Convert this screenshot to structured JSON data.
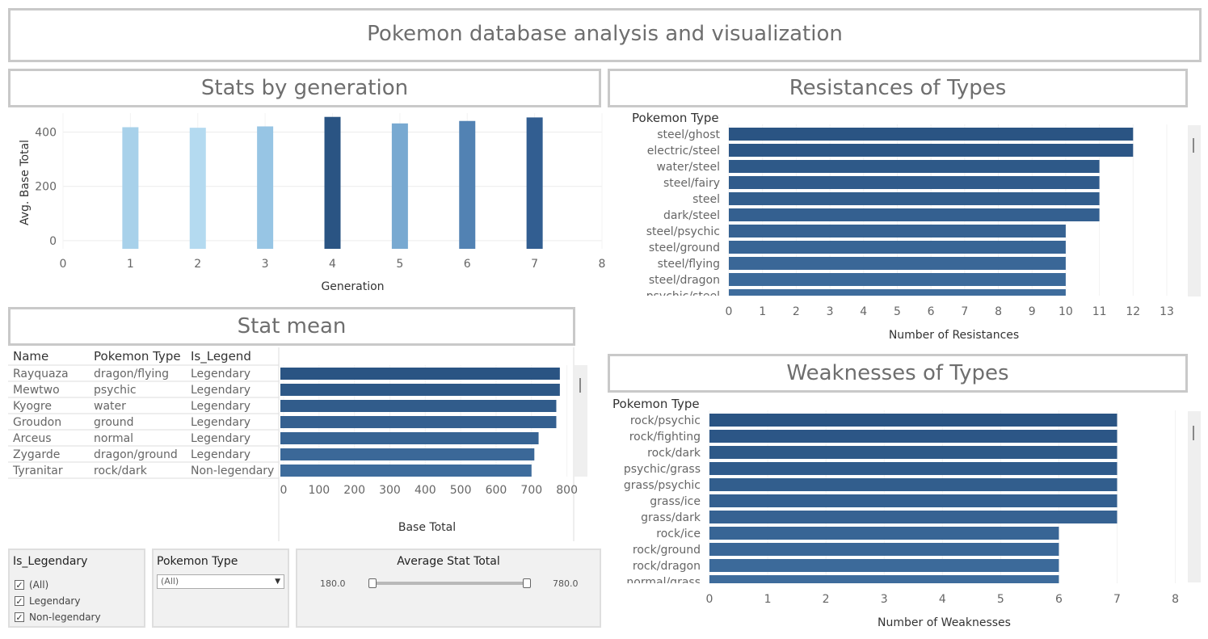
{
  "dashboard": {
    "title": "Pokemon database analysis and visualization"
  },
  "panels": {
    "generation_title": "Stats by generation",
    "resist_title": "Resistances of Types",
    "statmean_title": "Stat mean",
    "weak_title": "Weaknesses of Types"
  },
  "chart_data": [
    {
      "type": "bar",
      "title": "Stats by generation",
      "xlabel": "Generation",
      "ylabel": "Avg. Base Total",
      "x": [
        1,
        2,
        3,
        4,
        5,
        6,
        7
      ],
      "values": [
        418,
        416,
        421,
        456,
        432,
        441,
        454
      ],
      "xlim": [
        0,
        8
      ],
      "ylim": [
        -30,
        470
      ],
      "xticks": [
        0,
        1,
        2,
        3,
        4,
        5,
        6,
        7,
        8
      ],
      "yticks": [
        0,
        200,
        400
      ],
      "colors": [
        "#a8d1ea",
        "#b4daf0",
        "#97c5e4",
        "#2a5483",
        "#78a9d1",
        "#5282b3",
        "#325e91"
      ],
      "grid": true
    },
    {
      "type": "bar",
      "orientation": "horizontal",
      "title": "Resistances of Types",
      "category_header": "Pokemon Type",
      "xlabel": "Number of Resistances",
      "categories": [
        "steel/ghost",
        "electric/steel",
        "water/steel",
        "steel/fairy",
        "steel",
        "dark/steel",
        "steel/psychic",
        "steel/ground",
        "steel/flying",
        "steel/dragon",
        "psychic/steel"
      ],
      "values": [
        12,
        12,
        11,
        11,
        11,
        11,
        10,
        10,
        10,
        10,
        10
      ],
      "xticks": [
        0,
        1,
        2,
        3,
        4,
        5,
        6,
        7,
        8,
        9,
        10,
        11,
        12,
        13
      ],
      "xlim": [
        0,
        13.6
      ]
    },
    {
      "type": "table",
      "title": "Stat mean",
      "columns": [
        "Name",
        "Pokemon Type",
        "Is_Legend"
      ],
      "rows": [
        [
          "Rayquaza",
          "dragon/flying",
          "Legendary"
        ],
        [
          "Mewtwo",
          "psychic",
          "Legendary"
        ],
        [
          "Kyogre",
          "water",
          "Legendary"
        ],
        [
          "Groudon",
          "ground",
          "Legendary"
        ],
        [
          "Arceus",
          "normal",
          "Legendary"
        ],
        [
          "Zygarde",
          "dragon/ground",
          "Legendary"
        ],
        [
          "Tyranitar",
          "rock/dark",
          "Non-legendary"
        ]
      ],
      "values": [
        780,
        780,
        770,
        770,
        720,
        708,
        700
      ],
      "xlabel": "Base Total",
      "xticks": [
        0,
        100,
        200,
        300,
        400,
        500,
        600,
        700,
        800
      ],
      "xlim": [
        0,
        810
      ]
    },
    {
      "type": "bar",
      "orientation": "horizontal",
      "title": "Weaknesses of Types",
      "category_header": "Pokemon Type",
      "xlabel": "Number of Weaknesses",
      "categories": [
        "rock/psychic",
        "rock/fighting",
        "rock/dark",
        "psychic/grass",
        "grass/psychic",
        "grass/ice",
        "grass/dark",
        "rock/ice",
        "rock/ground",
        "rock/dragon",
        "normal/grass"
      ],
      "values": [
        7,
        7,
        7,
        7,
        7,
        7,
        7,
        6,
        6,
        6,
        6
      ],
      "xticks": [
        0,
        1,
        2,
        3,
        4,
        5,
        6,
        7,
        8
      ],
      "xlim": [
        0,
        8.2
      ]
    }
  ],
  "filters": {
    "legendary": {
      "title": "Is_Legendary",
      "options": [
        "(All)",
        "Legendary",
        "Non-legendary"
      ],
      "check": "✓"
    },
    "type": {
      "title": "Pokemon Type",
      "selected": "(All)",
      "arrow": "▼"
    },
    "stat_total": {
      "title": "Average Stat Total",
      "min": "180.0",
      "max": "780.0"
    }
  },
  "colors": {
    "dark_blue": "#2a5483",
    "mid_blue": "#3a6899",
    "frame": "#c9c9c9"
  }
}
